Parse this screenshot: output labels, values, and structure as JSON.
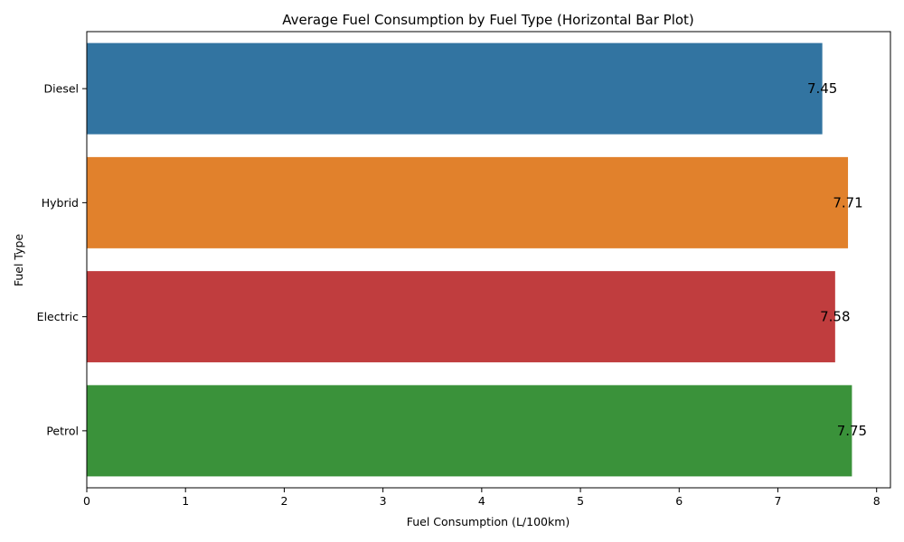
{
  "chart_data": {
    "type": "bar",
    "orientation": "horizontal",
    "title": "Average Fuel Consumption by Fuel Type (Horizontal Bar Plot)",
    "xlabel": "Fuel Consumption (L/100km)",
    "ylabel": "Fuel Type",
    "categories": [
      "Diesel",
      "Hybrid",
      "Electric",
      "Petrol"
    ],
    "values": [
      7.45,
      7.71,
      7.58,
      7.75
    ],
    "value_labels": [
      "7.45",
      "7.71",
      "7.58",
      "7.75"
    ],
    "colors": [
      "#3274a1",
      "#e1812c",
      "#c03d3e",
      "#3a923a"
    ],
    "xlim": [
      0,
      8.14
    ],
    "xticks": [
      0,
      1,
      2,
      3,
      4,
      5,
      6,
      7,
      8
    ],
    "xtick_labels": [
      "0",
      "1",
      "2",
      "3",
      "4",
      "5",
      "6",
      "7",
      "8"
    ],
    "grid": false,
    "legend": "none"
  }
}
